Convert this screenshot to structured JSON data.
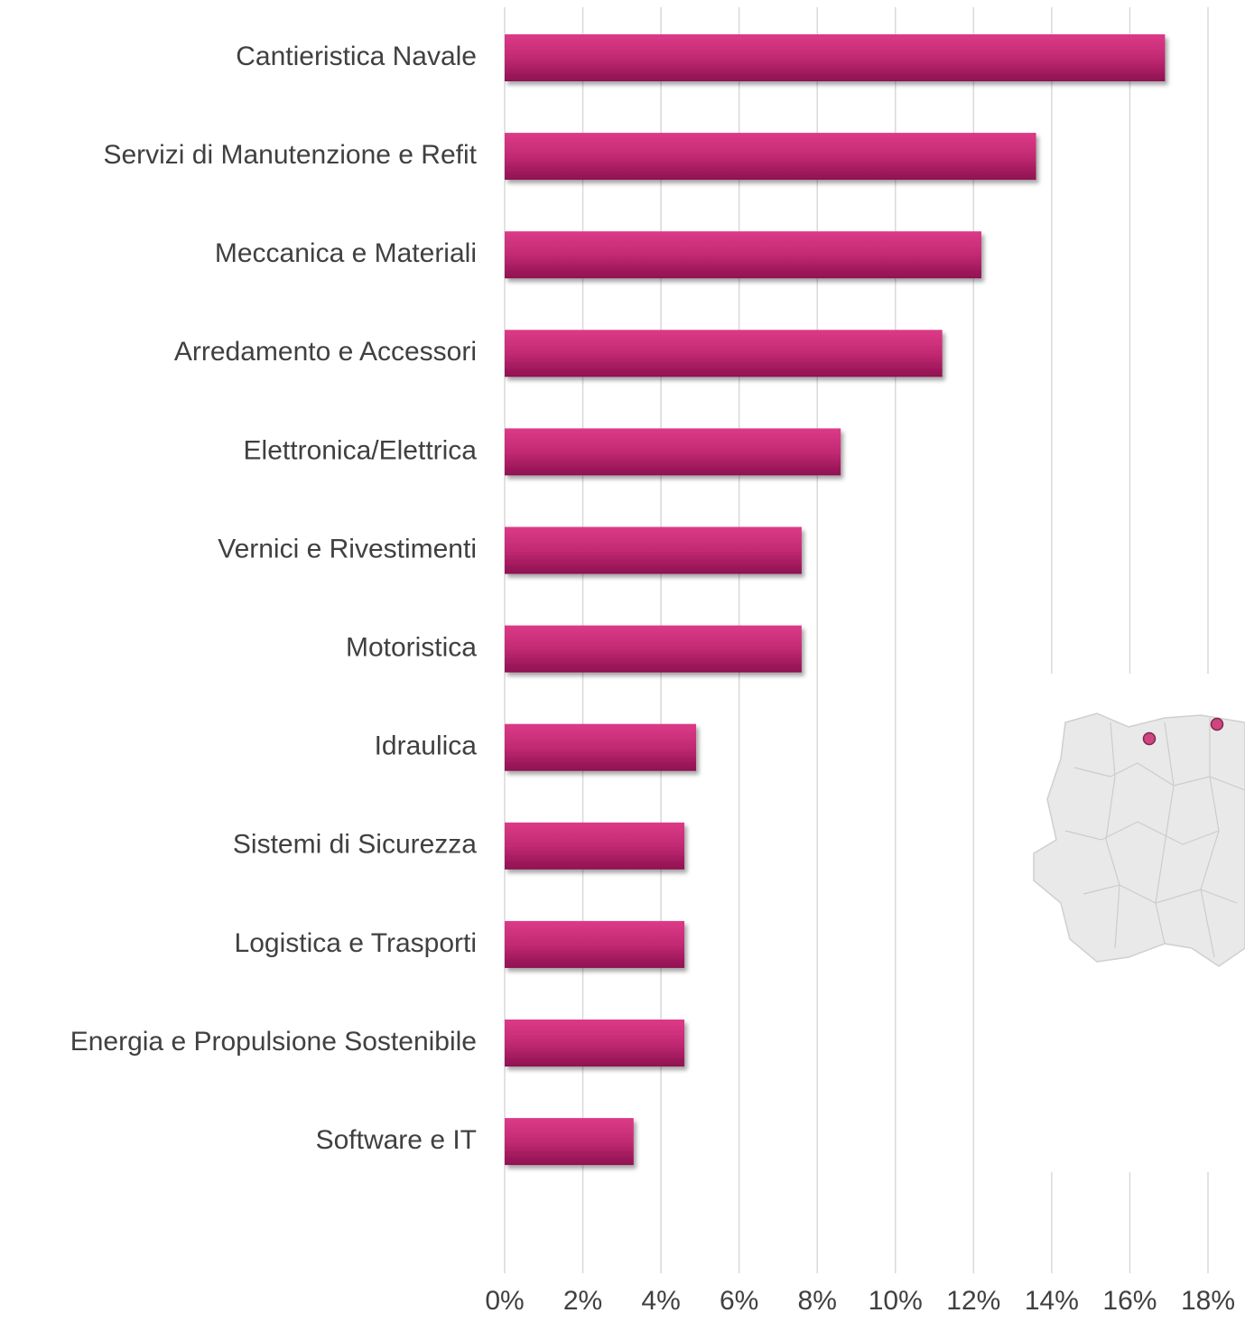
{
  "chart_data": {
    "type": "bar",
    "orientation": "horizontal",
    "categories": [
      "Cantieristica Navale",
      "Servizi di Manutenzione e Refit",
      "Meccanica e Materiali",
      "Arredamento e Accessori",
      "Elettronica/Elettrica",
      "Vernici e Rivestimenti",
      "Motoristica",
      "Idraulica",
      "Sistemi di Sicurezza",
      "Logistica e Trasporti",
      "Energia e Propulsione Sostenibile",
      "Software e IT"
    ],
    "values": [
      16.9,
      13.6,
      12.2,
      11.2,
      8.6,
      7.6,
      7.6,
      4.9,
      4.6,
      4.6,
      4.6,
      3.3
    ],
    "color": "#c62a74",
    "xlim": [
      0,
      18
    ],
    "xticks": [
      {
        "value": 0,
        "label": "0%"
      },
      {
        "value": 2,
        "label": "2%"
      },
      {
        "value": 4,
        "label": "4%"
      },
      {
        "value": 6,
        "label": "6%"
      },
      {
        "value": 8,
        "label": "8%"
      },
      {
        "value": 10,
        "label": "10%"
      },
      {
        "value": 12,
        "label": "12%"
      },
      {
        "value": 14,
        "label": "14%"
      },
      {
        "value": 16,
        "label": "16%"
      },
      {
        "value": 18,
        "label": "18%"
      }
    ],
    "grid": true
  }
}
